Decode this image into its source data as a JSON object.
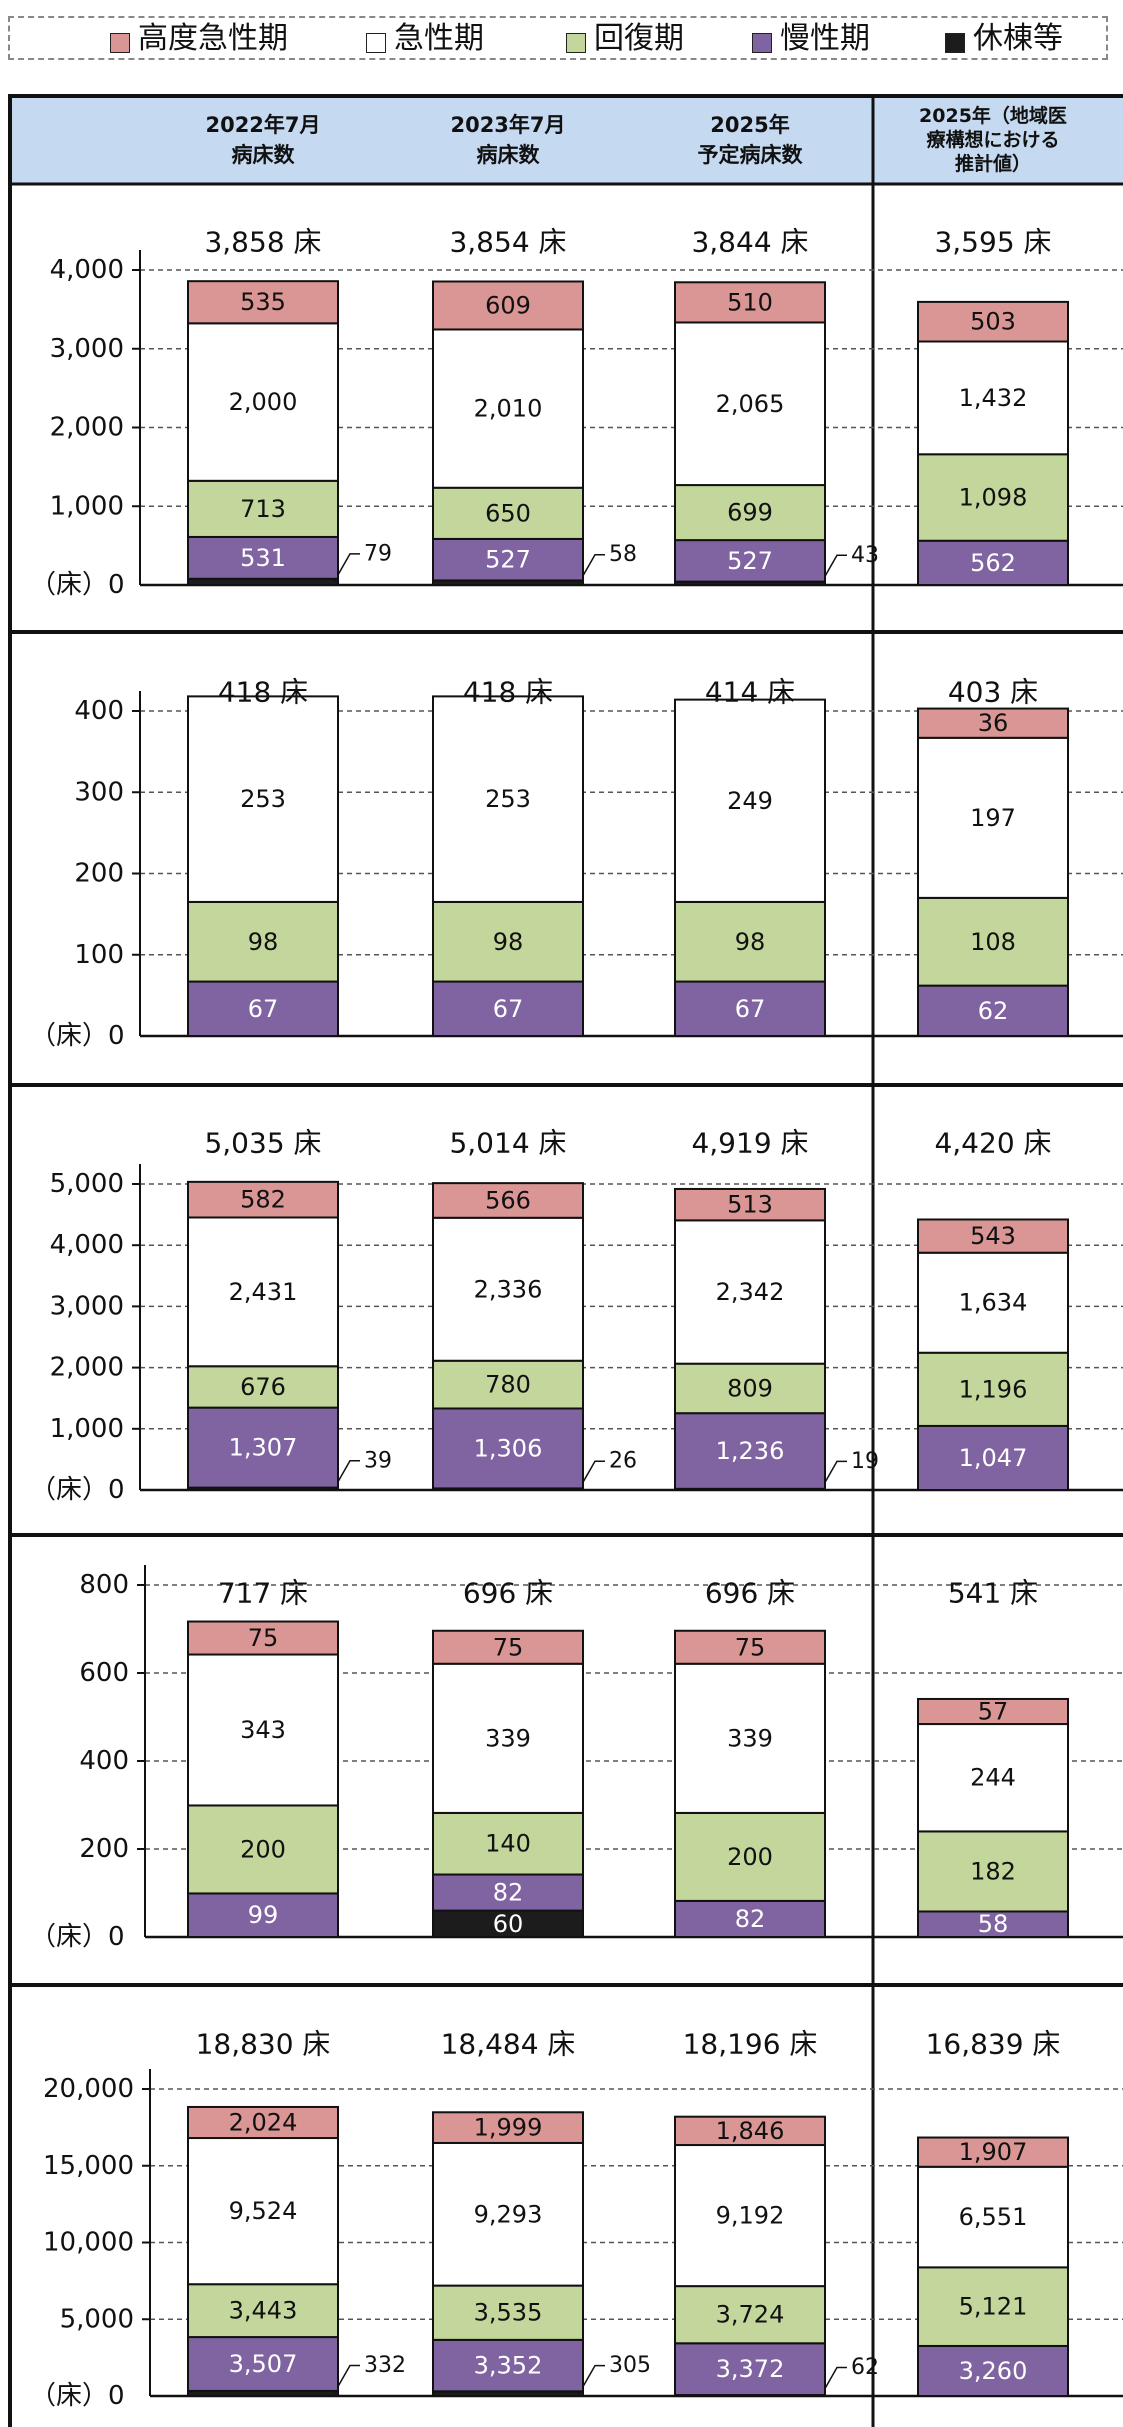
{
  "legend": [
    {
      "label": "高度急性期",
      "color": "#d99694"
    },
    {
      "label": "急性期",
      "color": "#ffffff"
    },
    {
      "label": "回復期",
      "color": "#c3d69b"
    },
    {
      "label": "慢性期",
      "color": "#8064a2"
    },
    {
      "label": "休棟等",
      "color": "#1c1c1c"
    }
  ],
  "header": {
    "columns": [
      [
        "2022年7月",
        "病床数"
      ],
      [
        "2023年7月",
        "病床数"
      ],
      [
        "2025年",
        "予定病床数"
      ],
      [
        "2025年（地域医",
        "療構想における",
        "推計値）"
      ]
    ],
    "background": "#c5d9f1"
  },
  "axis_unit": "（床）0",
  "total_suffix": " 床",
  "chart_data": [
    {
      "type": "bar",
      "stacked": true,
      "categories": [
        "2022年7月病床数",
        "2023年7月病床数",
        "2025年予定病床数",
        "2025年（地域医療構想における推計値）"
      ],
      "totals": [
        "3,858",
        "3,854",
        "3,844",
        "3,595"
      ],
      "ylim": [
        0,
        4000
      ],
      "yticks": [
        "4,000",
        "3,000",
        "2,000",
        "1,000"
      ],
      "grid": true,
      "series": [
        {
          "name": "休棟等",
          "values": [
            79,
            58,
            43,
            0
          ],
          "labels": [
            "79",
            "58",
            "43",
            ""
          ]
        },
        {
          "name": "慢性期",
          "values": [
            531,
            527,
            527,
            562
          ],
          "labels": [
            "531",
            "527",
            "527",
            "562"
          ]
        },
        {
          "name": "回復期",
          "values": [
            713,
            650,
            699,
            1098
          ],
          "labels": [
            "713",
            "650",
            "699",
            "1,098"
          ]
        },
        {
          "name": "急性期",
          "values": [
            2000,
            2010,
            2065,
            1432
          ],
          "labels": [
            "2,000",
            "2,010",
            "2,065",
            "1,432"
          ]
        },
        {
          "name": "高度急性期",
          "values": [
            535,
            609,
            510,
            503
          ],
          "labels": [
            "535",
            "609",
            "510",
            "503"
          ]
        }
      ]
    },
    {
      "type": "bar",
      "stacked": true,
      "categories": [
        "2022年7月病床数",
        "2023年7月病床数",
        "2025年予定病床数",
        "2025年（地域医療構想における推計値）"
      ],
      "totals": [
        "418",
        "418",
        "414",
        "403"
      ],
      "ylim": [
        0,
        450
      ],
      "yticks": [
        "400",
        "300",
        "200",
        "100"
      ],
      "grid": true,
      "series": [
        {
          "name": "休棟等",
          "values": [
            0,
            0,
            0,
            0
          ],
          "labels": [
            "",
            "",
            "",
            ""
          ]
        },
        {
          "name": "慢性期",
          "values": [
            67,
            67,
            67,
            62
          ],
          "labels": [
            "67",
            "67",
            "67",
            "62"
          ]
        },
        {
          "name": "回復期",
          "values": [
            98,
            98,
            98,
            108
          ],
          "labels": [
            "98",
            "98",
            "98",
            "108"
          ]
        },
        {
          "name": "急性期",
          "values": [
            253,
            253,
            249,
            197
          ],
          "labels": [
            "253",
            "253",
            "249",
            "197"
          ]
        },
        {
          "name": "高度急性期",
          "values": [
            0,
            0,
            0,
            36
          ],
          "labels": [
            "",
            "",
            "",
            "36"
          ]
        }
      ]
    },
    {
      "type": "bar",
      "stacked": true,
      "categories": [
        "2022年7月病床数",
        "2023年7月病床数",
        "2025年予定病床数",
        "2025年（地域医療構想における推計値）"
      ],
      "totals": [
        "5,035",
        "5,014",
        "4,919",
        "4,420"
      ],
      "ylim": [
        0,
        5000
      ],
      "yticks": [
        "5,000",
        "4,000",
        "3,000",
        "2,000",
        "1,000"
      ],
      "grid": true,
      "series": [
        {
          "name": "休棟等",
          "values": [
            39,
            26,
            19,
            0
          ],
          "labels": [
            "39",
            "26",
            "19",
            ""
          ]
        },
        {
          "name": "慢性期",
          "values": [
            1307,
            1306,
            1236,
            1047
          ],
          "labels": [
            "1,307",
            "1,306",
            "1,236",
            "1,047"
          ]
        },
        {
          "name": "回復期",
          "values": [
            676,
            780,
            809,
            1196
          ],
          "labels": [
            "676",
            "780",
            "809",
            "1,196"
          ]
        },
        {
          "name": "急性期",
          "values": [
            2431,
            2336,
            2342,
            1634
          ],
          "labels": [
            "2,431",
            "2,336",
            "2,342",
            "1,634"
          ]
        },
        {
          "name": "高度急性期",
          "values": [
            582,
            566,
            513,
            543
          ],
          "labels": [
            "582",
            "566",
            "513",
            "543"
          ]
        }
      ]
    },
    {
      "type": "bar",
      "stacked": true,
      "categories": [
        "2022年7月病床数",
        "2023年7月病床数",
        "2025年予定病床数",
        "2025年（地域医療構想における推計値）"
      ],
      "totals": [
        "717",
        "696",
        "696",
        "541"
      ],
      "ylim": [
        0,
        800
      ],
      "yticks": [
        "800",
        "600",
        "400",
        "200"
      ],
      "grid": true,
      "series": [
        {
          "name": "休棟等",
          "values": [
            0,
            60,
            0,
            0
          ],
          "labels": [
            "",
            "60",
            "",
            ""
          ]
        },
        {
          "name": "慢性期",
          "values": [
            99,
            82,
            82,
            58
          ],
          "labels": [
            "99",
            "82",
            "82",
            "58"
          ]
        },
        {
          "name": "回復期",
          "values": [
            200,
            140,
            200,
            182
          ],
          "labels": [
            "200",
            "140",
            "200",
            "182"
          ]
        },
        {
          "name": "急性期",
          "values": [
            343,
            339,
            339,
            244
          ],
          "labels": [
            "343",
            "339",
            "339",
            "244"
          ]
        },
        {
          "name": "高度急性期",
          "values": [
            75,
            75,
            75,
            57
          ],
          "labels": [
            "75",
            "75",
            "75",
            "57"
          ]
        }
      ]
    },
    {
      "type": "bar",
      "stacked": true,
      "categories": [
        "2022年7月病床数",
        "2023年7月病床数",
        "2025年予定病床数",
        "2025年（地域医療構想における推計値）"
      ],
      "totals": [
        "18,830",
        "18,484",
        "18,196",
        "16,839"
      ],
      "ylim": [
        0,
        20000
      ],
      "yticks": [
        "20,000",
        "15,000",
        "10,000",
        "5,000"
      ],
      "grid": true,
      "series": [
        {
          "name": "休棟等",
          "values": [
            332,
            305,
            62,
            0
          ],
          "labels": [
            "332",
            "305",
            "62",
            ""
          ]
        },
        {
          "name": "慢性期",
          "values": [
            3507,
            3352,
            3372,
            3260
          ],
          "labels": [
            "3,507",
            "3,352",
            "3,372",
            "3,260"
          ]
        },
        {
          "name": "回復期",
          "values": [
            3443,
            3535,
            3724,
            5121
          ],
          "labels": [
            "3,443",
            "3,535",
            "3,724",
            "5,121"
          ]
        },
        {
          "name": "急性期",
          "values": [
            9524,
            9293,
            9192,
            6551
          ],
          "labels": [
            "9,524",
            "9,293",
            "9,192",
            "6,551"
          ]
        },
        {
          "name": "高度急性期",
          "values": [
            2024,
            1999,
            1846,
            1907
          ],
          "labels": [
            "2,024",
            "1,999",
            "1,846",
            "1,907"
          ]
        }
      ]
    }
  ]
}
